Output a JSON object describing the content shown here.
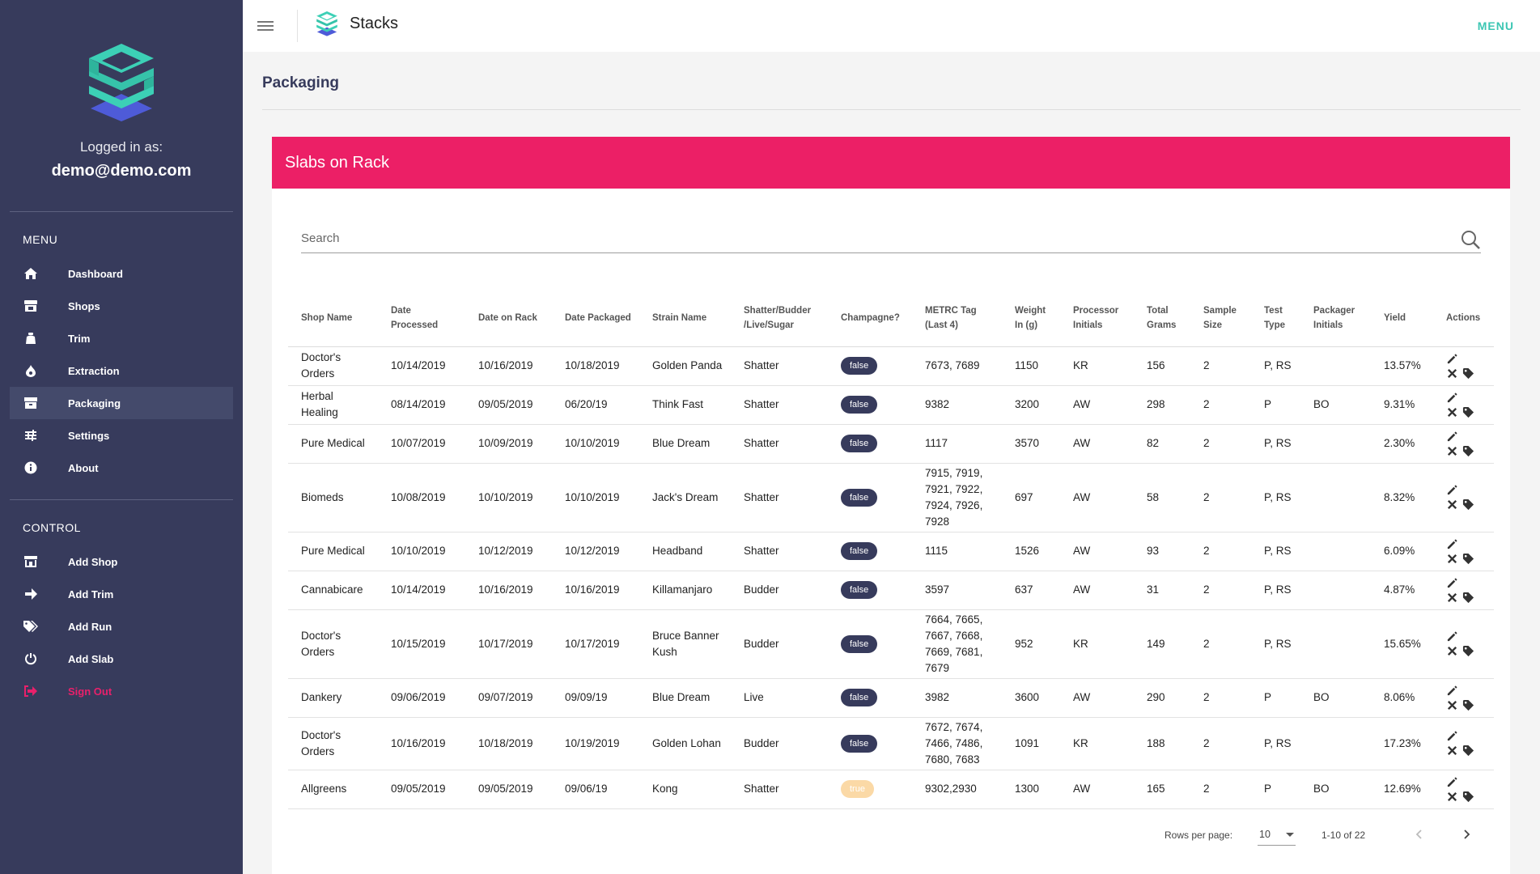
{
  "app": {
    "brand": "Stacks",
    "top_menu_label": "MENU"
  },
  "sidebar": {
    "logged_in_label": "Logged in as:",
    "user_email": "demo@demo.com",
    "menu_heading": "MENU",
    "menu_items": [
      {
        "label": "Dashboard",
        "icon": "home-icon"
      },
      {
        "label": "Shops",
        "icon": "store-icon"
      },
      {
        "label": "Trim",
        "icon": "bag-icon"
      },
      {
        "label": "Extraction",
        "icon": "flame-icon"
      },
      {
        "label": "Packaging",
        "icon": "box-icon",
        "active": true
      },
      {
        "label": "Settings",
        "icon": "sliders-icon"
      },
      {
        "label": "About",
        "icon": "info-icon"
      }
    ],
    "control_heading": "CONTROL",
    "control_items": [
      {
        "label": "Add Shop",
        "icon": "store-add-icon"
      },
      {
        "label": "Add Trim",
        "icon": "arrow-right-icon"
      },
      {
        "label": "Add Run",
        "icon": "tags-icon"
      },
      {
        "label": "Add Slab",
        "icon": "power-icon"
      },
      {
        "label": "Sign Out",
        "icon": "sign-out-icon"
      }
    ]
  },
  "page": {
    "title": "Packaging"
  },
  "card": {
    "title": "Slabs on Rack"
  },
  "search": {
    "placeholder": "Search"
  },
  "colors": {
    "sidebar": "#373b5c",
    "accent_pink": "#ec1f66",
    "accent_teal": "#3cc6b3",
    "badge_false": "#373b5c",
    "badge_true": "#fbd9a6"
  },
  "table": {
    "headers": [
      "Shop Name",
      "Date Processed",
      "Date on Rack",
      "Date Packaged",
      "Strain Name",
      "Shatter/Budder /Live/Sugar",
      "Champagne?",
      "METRC Tag (Last 4)",
      "Weight In (g)",
      "Processor Initials",
      "Total Grams",
      "Sample Size",
      "Test Type",
      "Packager Initials",
      "Yield",
      "Actions"
    ],
    "rows": [
      {
        "shop": "Doctor's Orders",
        "processed": "10/14/2019",
        "rack": "10/16/2019",
        "packaged": "10/18/2019",
        "strain": "Golden Panda",
        "type": "Shatter",
        "champagne": "false",
        "metrc": "7673, 7689",
        "weight": "1150",
        "processor": "KR",
        "total": "156",
        "sample": "2",
        "test": "P, RS",
        "packager": "",
        "yield": "13.57%"
      },
      {
        "shop": "Herbal Healing",
        "processed": "08/14/2019",
        "rack": "09/05/2019",
        "packaged": "06/20/19",
        "strain": "Think Fast",
        "type": "Shatter",
        "champagne": "false",
        "metrc": "9382",
        "weight": "3200",
        "processor": "AW",
        "total": "298",
        "sample": "2",
        "test": "P",
        "packager": "BO",
        "yield": "9.31%"
      },
      {
        "shop": "Pure Medical",
        "processed": "10/07/2019",
        "rack": "10/09/2019",
        "packaged": "10/10/2019",
        "strain": "Blue Dream",
        "type": "Shatter",
        "champagne": "false",
        "metrc": "1117",
        "weight": "3570",
        "processor": "AW",
        "total": "82",
        "sample": "2",
        "test": "P, RS",
        "packager": "",
        "yield": "2.30%"
      },
      {
        "shop": "Biomeds",
        "processed": "10/08/2019",
        "rack": "10/10/2019",
        "packaged": "10/10/2019",
        "strain": "Jack's Dream",
        "type": "Shatter",
        "champagne": "false",
        "metrc": "7915, 7919, 7921, 7922, 7924, 7926, 7928",
        "weight": "697",
        "processor": "AW",
        "total": "58",
        "sample": "2",
        "test": "P, RS",
        "packager": "",
        "yield": "8.32%"
      },
      {
        "shop": "Pure Medical",
        "processed": "10/10/2019",
        "rack": "10/12/2019",
        "packaged": "10/12/2019",
        "strain": "Headband",
        "type": "Shatter",
        "champagne": "false",
        "metrc": "1115",
        "weight": "1526",
        "processor": "AW",
        "total": "93",
        "sample": "2",
        "test": "P, RS",
        "packager": "",
        "yield": "6.09%"
      },
      {
        "shop": "Cannabicare",
        "processed": "10/14/2019",
        "rack": "10/16/2019",
        "packaged": "10/16/2019",
        "strain": "Killamanjaro",
        "type": "Budder",
        "champagne": "false",
        "metrc": "3597",
        "weight": "637",
        "processor": "AW",
        "total": "31",
        "sample": "2",
        "test": "P, RS",
        "packager": "",
        "yield": "4.87%"
      },
      {
        "shop": "Doctor's Orders",
        "processed": "10/15/2019",
        "rack": "10/17/2019",
        "packaged": "10/17/2019",
        "strain": "Bruce Banner Kush",
        "type": "Budder",
        "champagne": "false",
        "metrc": "7664, 7665, 7667, 7668, 7669, 7681, 7679",
        "weight": "952",
        "processor": "KR",
        "total": "149",
        "sample": "2",
        "test": "P, RS",
        "packager": "",
        "yield": "15.65%"
      },
      {
        "shop": "Dankery",
        "processed": "09/06/2019",
        "rack": "09/07/2019",
        "packaged": "09/09/19",
        "strain": "Blue Dream",
        "type": "Live",
        "champagne": "false",
        "metrc": "3982",
        "weight": "3600",
        "processor": "AW",
        "total": "290",
        "sample": "2",
        "test": "P",
        "packager": "BO",
        "yield": "8.06%"
      },
      {
        "shop": "Doctor's Orders",
        "processed": "10/16/2019",
        "rack": "10/18/2019",
        "packaged": "10/19/2019",
        "strain": "Golden Lohan",
        "type": "Budder",
        "champagne": "false",
        "metrc": "7672, 7674, 7466, 7486, 7680, 7683",
        "weight": "1091",
        "processor": "KR",
        "total": "188",
        "sample": "2",
        "test": "P, RS",
        "packager": "",
        "yield": "17.23%"
      },
      {
        "shop": "Allgreens",
        "processed": "09/05/2019",
        "rack": "09/05/2019",
        "packaged": "09/06/19",
        "strain": "Kong",
        "type": "Shatter",
        "champagne": "true",
        "metrc": "9302,2930",
        "weight": "1300",
        "processor": "AW",
        "total": "165",
        "sample": "2",
        "test": "P",
        "packager": "BO",
        "yield": "12.69%"
      }
    ]
  },
  "pagination": {
    "rows_per_page_label": "Rows per page:",
    "rows_per_page_value": "10",
    "range_text": "1-10 of 22"
  }
}
